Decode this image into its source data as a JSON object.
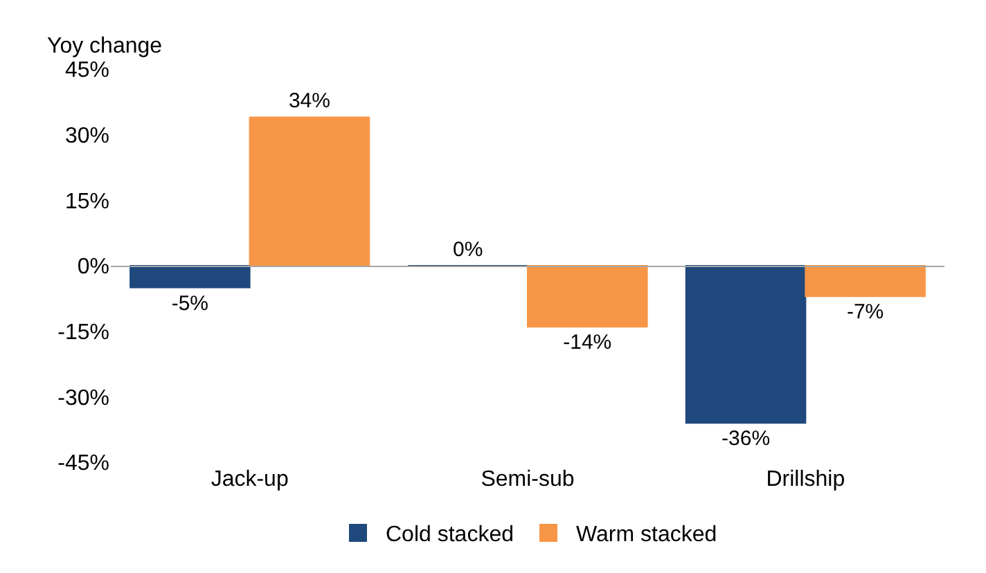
{
  "chart_data": {
    "type": "bar",
    "ylabel": "Yoy change",
    "categories": [
      "Jack-up",
      "Semi-sub",
      "Drillship"
    ],
    "series": [
      {
        "name": "Cold stacked",
        "color": "#1f497d",
        "values": [
          -5,
          0,
          -36
        ],
        "value_labels": [
          "-5%",
          "0%",
          "-36%"
        ]
      },
      {
        "name": "Warm stacked",
        "color": "#f79646",
        "values": [
          34,
          -14,
          -7
        ],
        "value_labels": [
          "34%",
          "-14%",
          "-7%"
        ]
      }
    ],
    "ylim": [
      -45,
      45
    ],
    "yticks": [
      {
        "value": 45,
        "label": "45%"
      },
      {
        "value": 30,
        "label": "30%"
      },
      {
        "value": 15,
        "label": "15%"
      },
      {
        "value": 0,
        "label": "0%"
      },
      {
        "value": -15,
        "label": "-15%"
      },
      {
        "value": -30,
        "label": "-30%"
      },
      {
        "value": -45,
        "label": "-45%"
      }
    ],
    "legend": "bottom"
  }
}
